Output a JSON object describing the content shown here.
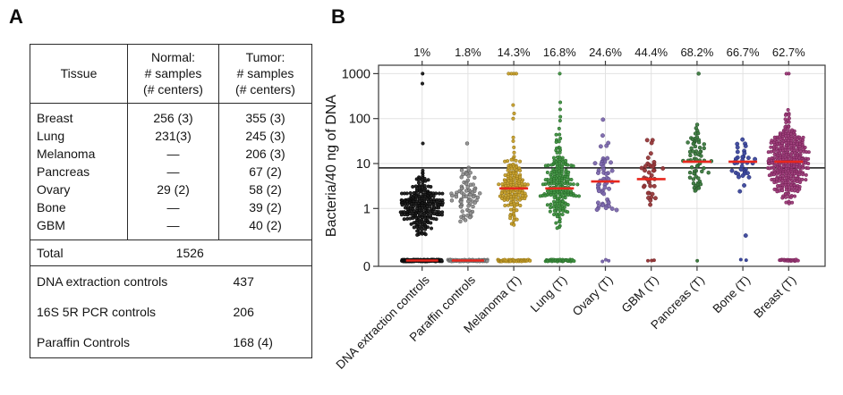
{
  "figure": {
    "panelA": {
      "label": "A",
      "table": {
        "col_headers": [
          "Tissue",
          "Normal:\n# samples\n(# centers)",
          "Tumor:\n# samples\n(# centers)"
        ],
        "rows": [
          {
            "tissue": "Breast",
            "normal": "256 (3)",
            "tumor": "355 (3)"
          },
          {
            "tissue": "Lung",
            "normal": "231(3)",
            "tumor": "245 (3)"
          },
          {
            "tissue": "Melanoma",
            "normal": "—",
            "tumor": "206 (3)"
          },
          {
            "tissue": "Pancreas",
            "normal": "—",
            "tumor": "67 (2)"
          },
          {
            "tissue": "Ovary",
            "normal": "29 (2)",
            "tumor": "58 (2)"
          },
          {
            "tissue": "Bone",
            "normal": "—",
            "tumor": "39 (2)"
          },
          {
            "tissue": "GBM",
            "normal": "—",
            "tumor": "40 (2)"
          }
        ],
        "total_label": "Total",
        "total_value": "1526",
        "controls": [
          {
            "label": "DNA extraction controls",
            "value": "437"
          },
          {
            "label": "16S 5R PCR controls",
            "value": "206"
          },
          {
            "label": "Paraffin Controls",
            "value": "168 (4)"
          }
        ]
      }
    },
    "panelB": {
      "label": "B"
    }
  },
  "chart_data": {
    "type": "scatter",
    "subtype": "beeswarm-strip-plot",
    "title": "",
    "xlabel": "",
    "ylabel": "Bacteria/40 ng of DNA",
    "y_scale": "log",
    "y_tick_labels": [
      "1000",
      "100",
      "10",
      "1",
      "0"
    ],
    "y_tick_values": [
      1000,
      100,
      10,
      1,
      0
    ],
    "grid": true,
    "legend": false,
    "threshold_line_value": 8,
    "median_color": "#e8261d",
    "grid_color": "#e2e2e2",
    "box_color": "#3a3a3a",
    "groups": [
      {
        "label": "DNA extraction controls",
        "percent_above": "1%",
        "n_samples": 437,
        "median_at_floor": true,
        "median": 0.15,
        "color": "#1b1b1b",
        "stroke": "#000000",
        "cloud": {
          "center": 1.05,
          "sigma": 0.3,
          "min": 0.25,
          "max": 8.8,
          "n": 235
        },
        "floor_n": 199,
        "outliers": [
          1000,
          600,
          28
        ]
      },
      {
        "label": "Paraffin controls",
        "percent_above": "1.8%",
        "n_samples": 168,
        "median_at_floor": true,
        "median": 0.15,
        "color": "#8f8f8f",
        "stroke": "#565656",
        "cloud": {
          "center": 2.0,
          "sigma": 0.33,
          "min": 0.45,
          "max": 8.8,
          "n": 74
        },
        "floor_n": 93,
        "outliers": [
          28
        ]
      },
      {
        "label": "Melanoma (T)",
        "percent_above": "14.3%",
        "n_samples": 206,
        "median_at_floor": false,
        "median": 2.8,
        "color": "#c7a02c",
        "stroke": "#8a6c12",
        "cloud": {
          "center": 2.8,
          "sigma": 0.42,
          "min": 0.4,
          "max": 45,
          "n": 147
        },
        "floor_n": 52,
        "outliers": [
          1000,
          1000,
          1000,
          1000,
          200,
          130,
          100
        ]
      },
      {
        "label": "Lung (T)",
        "percent_above": "16.8%",
        "n_samples": 245,
        "median_at_floor": false,
        "median": 2.8,
        "color": "#3f9140",
        "stroke": "#226325",
        "cloud": {
          "center": 2.8,
          "sigma": 0.45,
          "min": 0.35,
          "max": 50,
          "n": 195
        },
        "floor_n": 44,
        "outliers": [
          1000,
          230,
          160,
          110,
          90,
          60
        ]
      },
      {
        "label": "Ovary (T)",
        "percent_above": "24.6%",
        "n_samples": 58,
        "median_at_floor": false,
        "median": 4,
        "color": "#7c68ad",
        "stroke": "#53437c",
        "cloud": {
          "center": 4.0,
          "sigma": 0.5,
          "min": 0.8,
          "max": 32,
          "n": 53
        },
        "floor_n": 3,
        "outliers": [
          95,
          42
        ]
      },
      {
        "label": "GBM (T)",
        "percent_above": "44.4%",
        "n_samples": 40,
        "median_at_floor": false,
        "median": 4.5,
        "color": "#96383a",
        "stroke": "#6b2123",
        "cloud": {
          "center": 4.5,
          "sigma": 0.4,
          "min": 1.2,
          "max": 45,
          "n": 37
        },
        "floor_n": 3,
        "outliers": []
      },
      {
        "label": "Pancreas (T)",
        "percent_above": "68.2%",
        "n_samples": 67,
        "median_at_floor": false,
        "median": 11,
        "color": "#3c7a3f",
        "stroke": "#224f26",
        "cloud": {
          "center": 11,
          "sigma": 0.4,
          "min": 2,
          "max": 95,
          "n": 65
        },
        "floor_n": 1,
        "outliers": [
          1000
        ]
      },
      {
        "label": "Bone (T)",
        "percent_above": "66.7%",
        "n_samples": 39,
        "median_at_floor": false,
        "median": 11,
        "color": "#3b479d",
        "stroke": "#232c6e",
        "cloud": {
          "center": 11,
          "sigma": 0.35,
          "min": 1.4,
          "max": 35,
          "n": 36
        },
        "floor_n": 2,
        "outliers": [
          0.25
        ]
      },
      {
        "label": "Breast (T)",
        "percent_above": "62.7%",
        "n_samples": 355,
        "median_at_floor": false,
        "median": 11,
        "color": "#9c3a78",
        "stroke": "#6e1e50",
        "cloud": {
          "center": 11,
          "sigma": 0.45,
          "min": 0.8,
          "max": 550,
          "n": 325
        },
        "floor_n": 28,
        "outliers": [
          1000,
          1000
        ]
      }
    ]
  }
}
